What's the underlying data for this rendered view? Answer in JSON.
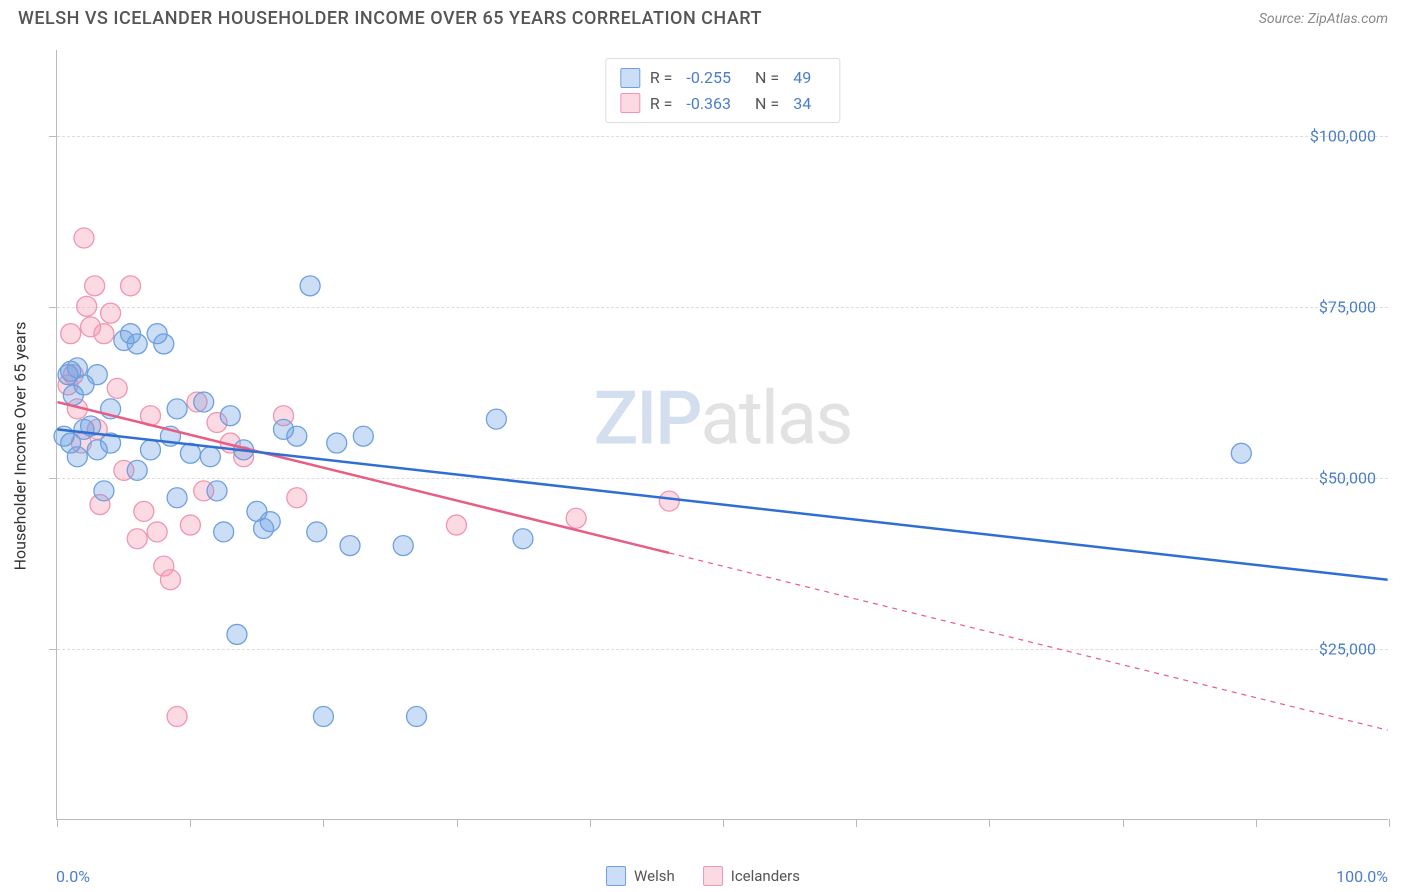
{
  "header": {
    "title": "WELSH VS ICELANDER HOUSEHOLDER INCOME OVER 65 YEARS CORRELATION CHART",
    "source": "Source: ZipAtlas.com"
  },
  "axes": {
    "y_title": "Householder Income Over 65 years",
    "x_min_label": "0.0%",
    "x_max_label": "100.0%",
    "xlim": [
      0,
      100
    ],
    "ylim": [
      0,
      112500
    ],
    "y_ticks": [
      {
        "value": 25000,
        "label": "$25,000"
      },
      {
        "value": 50000,
        "label": "$50,000"
      },
      {
        "value": 75000,
        "label": "$75,000"
      },
      {
        "value": 100000,
        "label": "$100,000"
      }
    ],
    "x_ticks_pct": [
      0,
      10,
      20,
      30,
      40,
      50,
      60,
      70,
      80,
      90,
      100
    ],
    "grid_color": "#dddddd"
  },
  "series": {
    "welsh": {
      "label": "Welsh",
      "fill": "rgba(110,160,225,0.35)",
      "stroke": "#6ea0e1",
      "line_color": "#2f6fd1",
      "r_value": "-0.255",
      "n_value": "49",
      "regression": {
        "x1": 0,
        "y1": 57000,
        "x2": 100,
        "y2": 35000,
        "dash_from_x": null
      },
      "points": [
        [
          0.5,
          56000
        ],
        [
          0.8,
          65000
        ],
        [
          1,
          65500
        ],
        [
          1,
          55000
        ],
        [
          1.2,
          62000
        ],
        [
          1.5,
          66000
        ],
        [
          1.5,
          53000
        ],
        [
          2,
          63500
        ],
        [
          2,
          57000
        ],
        [
          2.5,
          57500
        ],
        [
          3,
          65000
        ],
        [
          3,
          54000
        ],
        [
          3.5,
          48000
        ],
        [
          4,
          60000
        ],
        [
          4,
          55000
        ],
        [
          5,
          70000
        ],
        [
          5.5,
          71000
        ],
        [
          6,
          69500
        ],
        [
          6,
          51000
        ],
        [
          7,
          54000
        ],
        [
          7.5,
          71000
        ],
        [
          8,
          69500
        ],
        [
          8.5,
          56000
        ],
        [
          9,
          60000
        ],
        [
          9,
          47000
        ],
        [
          10,
          53500
        ],
        [
          11,
          61000
        ],
        [
          11.5,
          53000
        ],
        [
          12,
          48000
        ],
        [
          12.5,
          42000
        ],
        [
          13,
          59000
        ],
        [
          13.5,
          27000
        ],
        [
          14,
          54000
        ],
        [
          15,
          45000
        ],
        [
          15.5,
          42500
        ],
        [
          16,
          43500
        ],
        [
          17,
          57000
        ],
        [
          18,
          56000
        ],
        [
          19,
          78000
        ],
        [
          19.5,
          42000
        ],
        [
          20,
          15000
        ],
        [
          21,
          55000
        ],
        [
          22,
          40000
        ],
        [
          23,
          56000
        ],
        [
          26,
          40000
        ],
        [
          27,
          15000
        ],
        [
          33,
          58500
        ],
        [
          35,
          41000
        ],
        [
          89,
          53500
        ]
      ]
    },
    "icelanders": {
      "label": "Icelanders",
      "fill": "rgba(245,150,175,0.35)",
      "stroke": "#f196af",
      "line_color": "#e85d84",
      "r_value": "-0.363",
      "n_value": "34",
      "regression": {
        "x1": 0,
        "y1": 61000,
        "x2": 100,
        "y2": 13000,
        "dash_from_x": 46
      },
      "points": [
        [
          0.8,
          63500
        ],
        [
          1,
          71000
        ],
        [
          1.2,
          65000
        ],
        [
          1.5,
          60000
        ],
        [
          1.8,
          55000
        ],
        [
          2,
          85000
        ],
        [
          2.2,
          75000
        ],
        [
          2.5,
          72000
        ],
        [
          2.8,
          78000
        ],
        [
          3,
          57000
        ],
        [
          3.2,
          46000
        ],
        [
          3.5,
          71000
        ],
        [
          4,
          74000
        ],
        [
          4.5,
          63000
        ],
        [
          5,
          51000
        ],
        [
          5.5,
          78000
        ],
        [
          6,
          41000
        ],
        [
          6.5,
          45000
        ],
        [
          7,
          59000
        ],
        [
          7.5,
          42000
        ],
        [
          8,
          37000
        ],
        [
          8.5,
          35000
        ],
        [
          9,
          15000
        ],
        [
          10,
          43000
        ],
        [
          10.5,
          61000
        ],
        [
          11,
          48000
        ],
        [
          12,
          58000
        ],
        [
          13,
          55000
        ],
        [
          14,
          53000
        ],
        [
          17,
          59000
        ],
        [
          18,
          47000
        ],
        [
          30,
          43000
        ],
        [
          39,
          44000
        ],
        [
          46,
          46500
        ]
      ]
    }
  },
  "legend": {
    "r_label": "R =",
    "n_label": "N ="
  },
  "watermark": {
    "part1": "ZIP",
    "part2": "atlas"
  },
  "chart": {
    "type": "scatter",
    "marker_radius": 10,
    "marker_stroke_width": 1.3,
    "line_width": 2.5,
    "dash_pattern": "5,5",
    "background_color": "#ffffff"
  }
}
